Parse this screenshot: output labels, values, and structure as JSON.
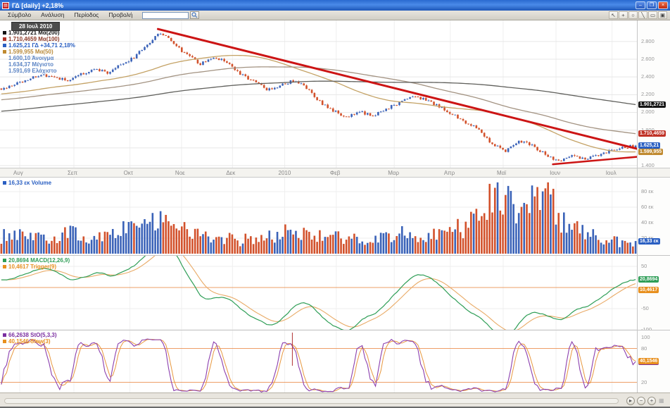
{
  "window": {
    "title": "ΓΔ [daily] +2,18%",
    "controls": {
      "minimize": "–",
      "restore": "❐",
      "close": "×"
    }
  },
  "menu": {
    "items": [
      "Σύμβολο",
      "Ανάλυση",
      "Περίοδος",
      "Προβολή"
    ],
    "search_value": "",
    "tools": [
      {
        "name": "pointer",
        "glyph": "↖"
      },
      {
        "name": "crosshair",
        "glyph": "+"
      },
      {
        "name": "ellipse",
        "glyph": "○"
      },
      {
        "name": "trendline",
        "glyph": "╲"
      },
      {
        "name": "rectangle",
        "glyph": "▭"
      },
      {
        "name": "save",
        "glyph": "▣"
      }
    ]
  },
  "cursor": {
    "date": "28 Ιουλ 2010"
  },
  "bottom": {
    "scroll": "▸",
    "zoom_out": "−",
    "zoom_in": "+",
    "grip": "▦"
  },
  "chart_data": [
    {
      "type": "candlestick",
      "title": "ΓΔ",
      "ylim": [
        1376,
        3037
      ],
      "yticks": [
        {
          "v": 2800,
          "label": "2.800"
        },
        {
          "v": 2600,
          "label": "2.600"
        },
        {
          "v": 2400,
          "label": "2.400"
        },
        {
          "v": 2200,
          "label": "2.200"
        },
        {
          "v": 2000,
          "label": "2.000"
        },
        {
          "v": 1800,
          "label": "1.800"
        },
        {
          "v": 1600,
          "label": "1.600"
        },
        {
          "v": 1400,
          "label": "1.400"
        }
      ],
      "x_labels": [
        {
          "pos": 0.031,
          "label": "Αυγ"
        },
        {
          "pos": 0.116,
          "label": "Σεπ"
        },
        {
          "pos": 0.204,
          "label": "Οκτ"
        },
        {
          "pos": 0.285,
          "label": "Νοε"
        },
        {
          "pos": 0.365,
          "label": "Δεκ"
        },
        {
          "pos": 0.447,
          "label": "2010"
        },
        {
          "pos": 0.528,
          "label": "Φεβ"
        },
        {
          "pos": 0.619,
          "label": "Μαρ"
        },
        {
          "pos": 0.707,
          "label": "Απρ"
        },
        {
          "pos": 0.79,
          "label": "Μαϊ"
        },
        {
          "pos": 0.873,
          "label": "Ιουν"
        },
        {
          "pos": 0.961,
          "label": "Ιουλ"
        }
      ],
      "anchors": [
        2270,
        2320,
        2380,
        2430,
        2400,
        2360,
        2430,
        2490,
        2450,
        2530,
        2620,
        2760,
        2900,
        2780,
        2640,
        2550,
        2630,
        2560,
        2440,
        2350,
        2260,
        2300,
        2360,
        2280,
        2120,
        2020,
        1940,
        2010,
        1960,
        2040,
        2110,
        2180,
        2140,
        2060,
        1980,
        1890,
        1810,
        1640,
        1560,
        1690,
        1620,
        1530,
        1450,
        1510,
        1470,
        1520,
        1570,
        1610,
        1625.21
      ],
      "candles_per_anchor": 5,
      "last": {
        "open": 1600.1,
        "high": 1634.37,
        "low": 1591.69,
        "close": 1625.21,
        "prev_close": 1590.5
      },
      "colors": {
        "up": "#3a62b8",
        "down": "#d2512b"
      },
      "mas": [
        {
          "period": 50,
          "color": "#c4a265",
          "tag": "1.599,955",
          "tag_bg": "#c08a30"
        },
        {
          "period": 100,
          "color": "#a39382",
          "tag": "1.710,4659",
          "tag_bg": "#c03226"
        },
        {
          "period": 200,
          "color": "#5f5f5b",
          "tag": "1.901,2721",
          "tag_bg": "#141414"
        }
      ],
      "price_tag": {
        "text": "1.625,21",
        "bg": "#2a5fc2"
      },
      "trendlines": [
        {
          "x1": 0.248,
          "p1": 2940,
          "x2": 1.01,
          "p2": 1572,
          "color": "#cc1414",
          "w": 3
        },
        {
          "x1": 0.868,
          "p1": 1415,
          "x2": 1.01,
          "p2": 1505,
          "color": "#cc1414",
          "w": 2.5
        }
      ],
      "legend": [
        {
          "text": "1.901,2721 Μα(200)",
          "color": "#141414",
          "square": "#141414"
        },
        {
          "text": "1.710,4659 Μα(100)",
          "color": "#8c3a28",
          "square": "#b03226"
        },
        {
          "text": "1.625,21 ΓΔ +34,71 2,18%",
          "color": "#2a5fc2",
          "square": "#2a5fc2"
        },
        {
          "text": "1.599,955 Μα(50)",
          "color": "#b98a3a",
          "square": "#c08a30"
        },
        {
          "text": "1.600,10 Άνοιγμα",
          "color": "#5b84c4",
          "square": null
        },
        {
          "text": "1.634,37 Μέγιστο",
          "color": "#5b84c4",
          "square": null
        },
        {
          "text": "1.591,69 Ελάχιστο",
          "color": "#5b84c4",
          "square": null
        }
      ]
    },
    {
      "type": "bar",
      "name": "Volume",
      "unit": "εκ",
      "yticks": [
        {
          "v": 80,
          "label": "80 εκ"
        },
        {
          "v": 60,
          "label": "60 εκ"
        },
        {
          "v": 40,
          "label": "40 εκ"
        },
        {
          "v": 20,
          "label": "20 εκ"
        }
      ],
      "vol_anchors": [
        22,
        25,
        20,
        23,
        21,
        26,
        23,
        20,
        26,
        30,
        36,
        40,
        38,
        32,
        28,
        25,
        22,
        19,
        17,
        20,
        22,
        27,
        25,
        29,
        27,
        23,
        19,
        18,
        19,
        22,
        25,
        23,
        22,
        26,
        31,
        36,
        50,
        72,
        64,
        48,
        58,
        78,
        46,
        32,
        26,
        21,
        17,
        14,
        16.33
      ],
      "spikes": [
        {
          "i": 186,
          "v": 85
        },
        {
          "i": 200,
          "v": 88
        }
      ],
      "last": 16.33,
      "tag": {
        "text": "16,33 εκ",
        "bg": "#2a5fc2"
      },
      "legend": [
        {
          "text": "16,33 εκ Volume",
          "color": "#2a5fc2",
          "square": "#2a5fc2"
        }
      ]
    },
    {
      "type": "macd",
      "params": [
        12,
        26,
        9
      ],
      "yticks": [
        {
          "v": 50,
          "label": "50"
        },
        {
          "v": -50,
          "label": "-50"
        },
        {
          "v": -100,
          "label": "-100"
        }
      ],
      "levels": [
        0
      ],
      "colors": {
        "macd": "#2f9e57",
        "trigger": "#e9aa66",
        "level": "#e87f35"
      },
      "tags": [
        {
          "text": "20,8694",
          "bg": "#2f9e57",
          "at": "macd"
        },
        {
          "text": "10,4617",
          "bg": "#e8901f",
          "at": "trigger"
        }
      ],
      "legend": [
        {
          "text": "20,8694 MACD(12,26,9)",
          "color": "#2f9e57",
          "square": "#2f9e57"
        },
        {
          "text": "10,4617 Trigger(9)",
          "color": "#e8901f",
          "square": "#e8901f"
        }
      ]
    },
    {
      "type": "stochastic",
      "params": [
        5,
        3,
        3
      ],
      "yticks": [
        {
          "v": 100,
          "label": "100"
        },
        {
          "v": 80,
          "label": "80"
        },
        {
          "v": 20,
          "label": "20"
        }
      ],
      "levels": [
        80,
        20
      ],
      "colors": {
        "k": "#8b3fae",
        "d": "#e8983f",
        "level": "#e87f35"
      },
      "vline": {
        "pos": 0.459,
        "color": "#b03030"
      },
      "tags": [
        {
          "text": "66,2638",
          "bg": "#7a2ea0",
          "at": "k"
        },
        {
          "text": "40,1546",
          "bg": "#e8901f",
          "at": "d"
        }
      ],
      "legend": [
        {
          "text": "66,2638 StO(5,3,3)",
          "color": "#7a2ea0",
          "square": "#7a2ea0"
        },
        {
          "text": "40,1546 Slow(3)",
          "color": "#e8901f",
          "square": "#e8901f"
        }
      ]
    }
  ]
}
